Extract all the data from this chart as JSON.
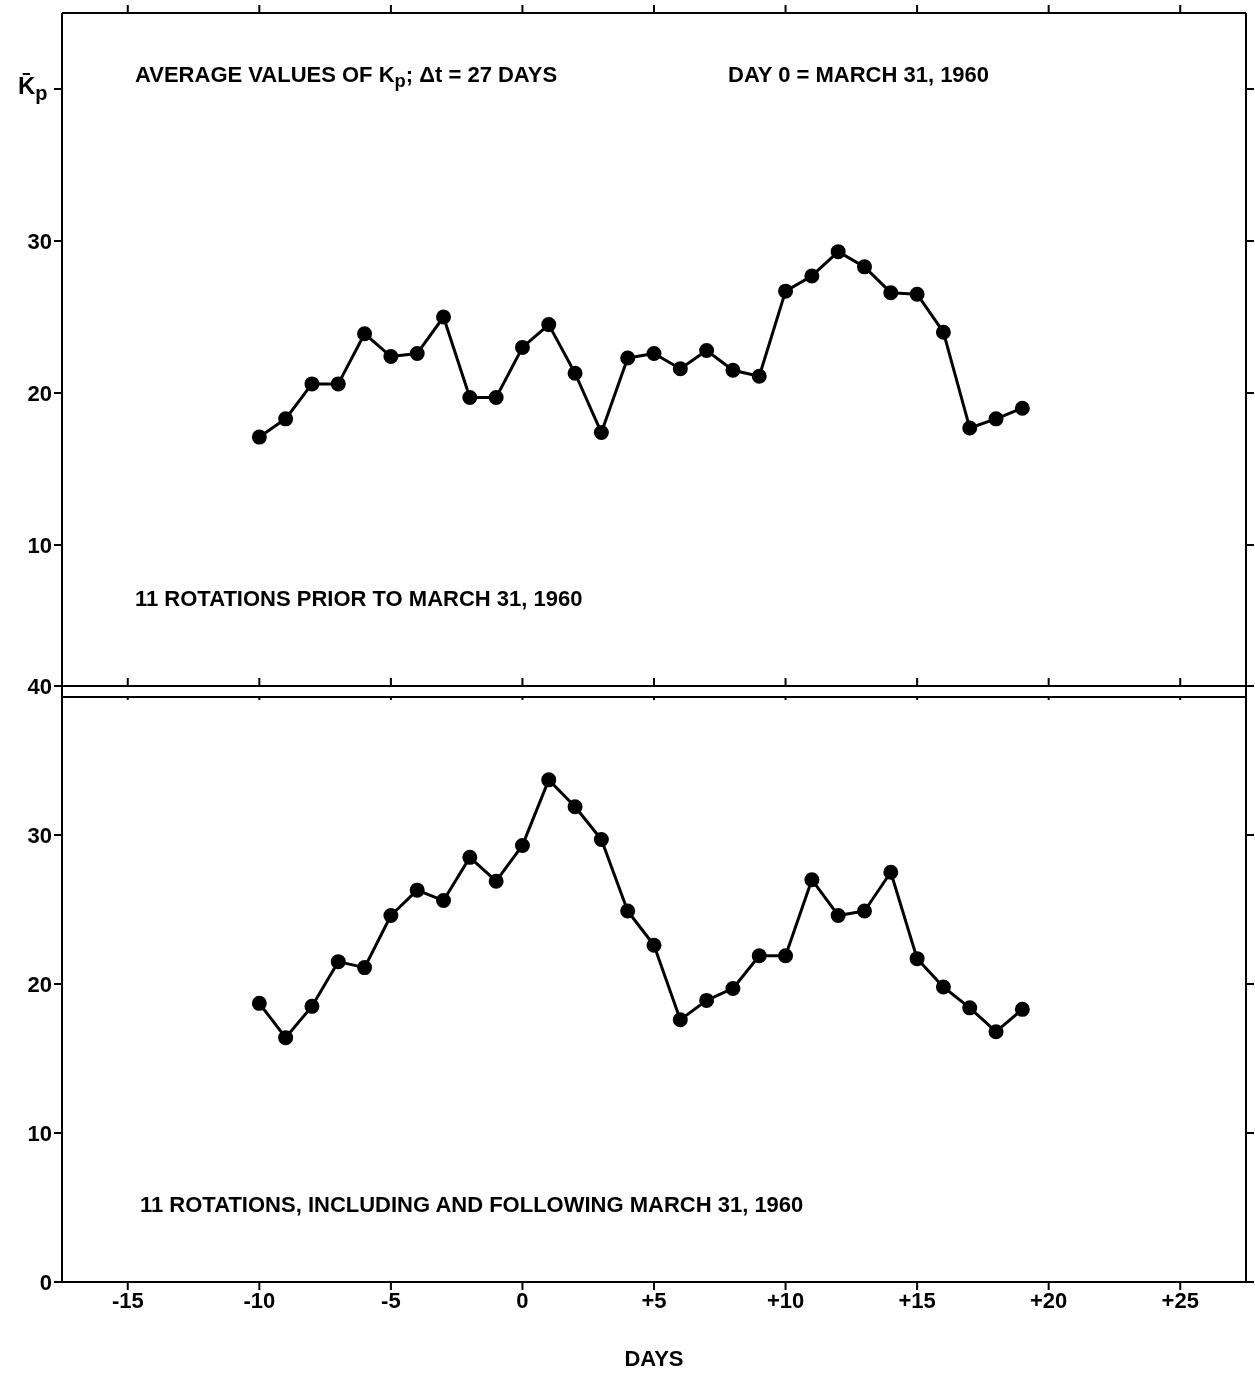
{
  "chart_data": [
    {
      "type": "line",
      "title": "AVERAGE VALUES OF K$_{p}$; Δt = 27 DAYS",
      "ylabel": "K̄$_{p}$",
      "annotations": [
        "DAY 0 = MARCH 31, 1960",
        "11 ROTATIONS PRIOR TO MARCH 31, 1960"
      ],
      "x": [
        -10,
        -9,
        -8,
        -7,
        -6,
        -5,
        -4,
        -3,
        -2,
        -1,
        0,
        1,
        2,
        3,
        4,
        5,
        6,
        7,
        8,
        9,
        10,
        11,
        12,
        13,
        14,
        15,
        16,
        17,
        18,
        19
      ],
      "series": [
        {
          "color": "#000000",
          "values": [
            17.1,
            18.3,
            20.6,
            20.6,
            23.9,
            22.4,
            22.6,
            25.0,
            19.7,
            19.7,
            23.0,
            24.5,
            21.3,
            17.4,
            22.3,
            22.6,
            21.6,
            22.8,
            21.5,
            21.1,
            26.7,
            27.7,
            29.3,
            28.3,
            26.6,
            26.5,
            24.0,
            17.7,
            18.3,
            19.0
          ]
        }
      ],
      "xlim": [
        -17.5,
        27.5
      ],
      "xticks": [
        {
          "value": -15,
          "label": null
        },
        {
          "value": -10,
          "label": null
        },
        {
          "value": -5,
          "label": null
        },
        {
          "value": 0,
          "label": null
        },
        {
          "value": 5,
          "label": null
        },
        {
          "value": 10,
          "label": null
        },
        {
          "value": 15,
          "label": null
        },
        {
          "value": 20,
          "label": null
        },
        {
          "value": 25,
          "label": null
        }
      ],
      "ylim": [
        0,
        45
      ],
      "yticks": [
        10,
        20,
        30,
        {
          "value": 40,
          "label": null
        }
      ],
      "tick_labels": "y",
      "marker": "circle",
      "line_style": "solid"
    },
    {
      "type": "line",
      "xlabel": "DAYS",
      "annotations": [
        "11 ROTATIONS, INCLUDING AND FOLLOWING MARCH 31, 1960"
      ],
      "x": [
        -10,
        -9,
        -8,
        -7,
        -6,
        -5,
        -4,
        -3,
        -2,
        -1,
        0,
        1,
        2,
        3,
        4,
        5,
        6,
        7,
        8,
        9,
        10,
        11,
        12,
        13,
        14,
        15,
        16,
        17,
        18,
        19
      ],
      "series": [
        {
          "color": "#000000",
          "values": [
            18.7,
            16.4,
            18.5,
            21.5,
            21.1,
            24.6,
            26.3,
            25.6,
            28.5,
            26.9,
            29.3,
            33.7,
            31.9,
            29.7,
            24.9,
            22.6,
            17.6,
            18.9,
            19.7,
            21.9,
            21.9,
            27.0,
            24.6,
            24.9,
            27.5,
            21.7,
            19.8,
            18.4,
            16.8,
            18.3
          ]
        }
      ],
      "xlim": [
        -17.5,
        27.5
      ],
      "xticks": [
        {
          "value": -15,
          "label": "-15"
        },
        {
          "value": -10,
          "label": "-10"
        },
        {
          "value": -5,
          "label": "-5"
        },
        0,
        {
          "value": 5,
          "label": "+5"
        },
        {
          "value": 10,
          "label": "+10"
        },
        {
          "value": 15,
          "label": "+15"
        },
        {
          "value": 20,
          "label": "+20"
        },
        {
          "value": 25,
          "label": "+25"
        }
      ],
      "ylim": [
        0,
        40
      ],
      "yticks": [
        0,
        10,
        20,
        30,
        40
      ],
      "marker": "circle",
      "line_style": "solid"
    }
  ]
}
